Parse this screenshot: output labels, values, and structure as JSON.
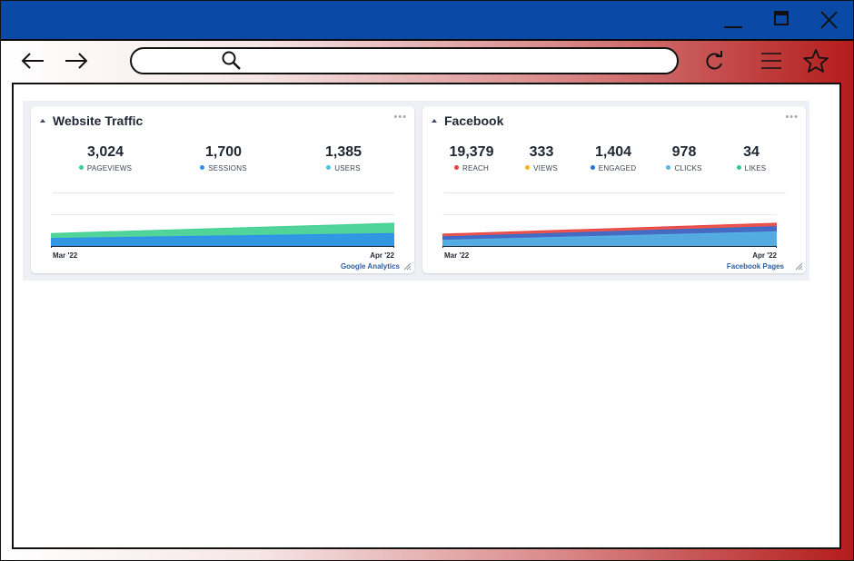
{
  "browser": {
    "address_value": "",
    "icons": [
      "back-arrow-icon",
      "forward-arrow-icon",
      "search-icon",
      "reload-icon",
      "menu-icon",
      "bookmark-star-icon"
    ]
  },
  "colors": {
    "titlebar": "#0a4aa6",
    "pageviews": "#3ecf8e",
    "sessions": "#2d8cf0",
    "users": "#4ec3e0",
    "reach": "#e8413c",
    "views": "#f5b31b",
    "engaged": "#2a6fd6",
    "clicks": "#56b6e8",
    "likes": "#34c98e"
  },
  "widgets": {
    "website_traffic": {
      "title": "Website Traffic",
      "metrics": [
        {
          "value": "3,024",
          "label": "PAGEVIEWS"
        },
        {
          "value": "1,700",
          "label": "SESSIONS"
        },
        {
          "value": "1,385",
          "label": "USERS"
        }
      ],
      "x_start": "Mar '22",
      "x_end": "Apr '22",
      "source": "Google Analytics"
    },
    "facebook": {
      "title": "Facebook",
      "metrics": [
        {
          "value": "19,379",
          "label": "REACH"
        },
        {
          "value": "333",
          "label": "VIEWS"
        },
        {
          "value": "1,404",
          "label": "ENGAGED"
        },
        {
          "value": "978",
          "label": "CLICKS"
        },
        {
          "value": "34",
          "label": "LIKES"
        }
      ],
      "x_start": "Mar '22",
      "x_end": "Apr '22",
      "source": "Facebook Pages"
    }
  },
  "chart_data": [
    {
      "type": "area",
      "x": [
        "Mar '22",
        "Apr '22"
      ],
      "series": [
        {
          "name": "PAGEVIEWS",
          "values": [
            0.55,
            1.0
          ]
        },
        {
          "name": "SESSIONS",
          "values": [
            0.33,
            0.55
          ]
        }
      ]
    },
    {
      "type": "area",
      "x": [
        "Mar '22",
        "Apr '22"
      ],
      "series": [
        {
          "name": "REACH",
          "values": [
            0.52,
            1.0
          ]
        },
        {
          "name": "ENGAGED",
          "values": [
            0.4,
            0.85
          ]
        },
        {
          "name": "CLICKS",
          "values": [
            0.25,
            0.62
          ]
        }
      ]
    }
  ]
}
